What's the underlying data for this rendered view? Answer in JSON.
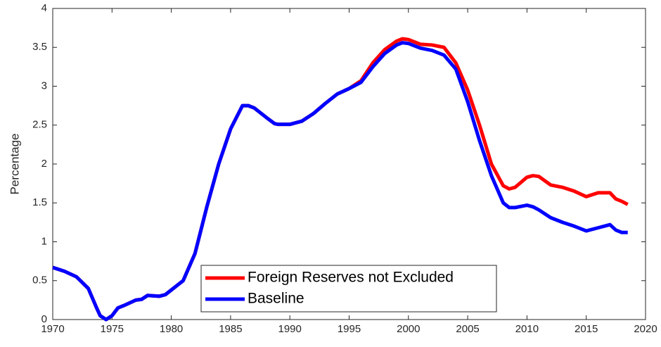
{
  "chart_data": {
    "type": "line",
    "ylabel": "Percentage",
    "x": [
      1970,
      1971,
      1972,
      1973,
      1973.7,
      1974,
      1974.5,
      1975,
      1975.5,
      1976,
      1977,
      1977.5,
      1978,
      1979,
      1979.5,
      1980,
      1981,
      1982,
      1983,
      1984,
      1985,
      1986,
      1986.5,
      1987,
      1988,
      1988.7,
      1989,
      1990,
      1991,
      1992,
      1993,
      1994,
      1995,
      1996,
      1997,
      1998,
      1999,
      1999.5,
      2000,
      2001,
      2002,
      2003,
      2004,
      2005,
      2006,
      2007,
      2008,
      2008.5,
      2009,
      2010,
      2010.5,
      2011,
      2012,
      2013,
      2014,
      2015,
      2016,
      2017,
      2017.5,
      2018,
      2018.5
    ],
    "series": [
      {
        "name": "Foreign Reserves not Excluded",
        "color": "#ff0000",
        "values": [
          0.67,
          0.62,
          0.55,
          0.4,
          0.15,
          0.05,
          0.0,
          0.05,
          0.15,
          0.18,
          0.25,
          0.26,
          0.31,
          0.3,
          0.32,
          0.38,
          0.5,
          0.85,
          1.45,
          2.0,
          2.45,
          2.75,
          2.75,
          2.72,
          2.6,
          2.52,
          2.51,
          2.51,
          2.55,
          2.65,
          2.78,
          2.9,
          2.97,
          3.07,
          3.3,
          3.47,
          3.58,
          3.61,
          3.6,
          3.54,
          3.53,
          3.5,
          3.3,
          2.95,
          2.5,
          2.0,
          1.72,
          1.68,
          1.7,
          1.83,
          1.85,
          1.84,
          1.73,
          1.7,
          1.65,
          1.58,
          1.63,
          1.63,
          1.55,
          1.52,
          1.48
        ]
      },
      {
        "name": "Baseline",
        "color": "#0000ff",
        "values": [
          0.67,
          0.62,
          0.55,
          0.4,
          0.15,
          0.05,
          0.0,
          0.05,
          0.15,
          0.18,
          0.25,
          0.26,
          0.31,
          0.3,
          0.32,
          0.38,
          0.5,
          0.85,
          1.45,
          2.0,
          2.45,
          2.75,
          2.75,
          2.72,
          2.6,
          2.52,
          2.51,
          2.51,
          2.55,
          2.65,
          2.78,
          2.9,
          2.97,
          3.05,
          3.25,
          3.42,
          3.53,
          3.56,
          3.55,
          3.49,
          3.46,
          3.4,
          3.22,
          2.8,
          2.3,
          1.85,
          1.5,
          1.44,
          1.44,
          1.47,
          1.45,
          1.41,
          1.31,
          1.25,
          1.2,
          1.14,
          1.18,
          1.22,
          1.15,
          1.12,
          1.12
        ]
      }
    ],
    "xlim": [
      1970,
      2020
    ],
    "xticks": [
      1970,
      1975,
      1980,
      1985,
      1990,
      1995,
      2000,
      2005,
      2010,
      2015,
      2020
    ],
    "ylim": [
      0,
      4
    ],
    "yticks": [
      0,
      0.5,
      1,
      1.5,
      2,
      2.5,
      3,
      3.5,
      4
    ],
    "grid": false,
    "legend": "lower center"
  }
}
